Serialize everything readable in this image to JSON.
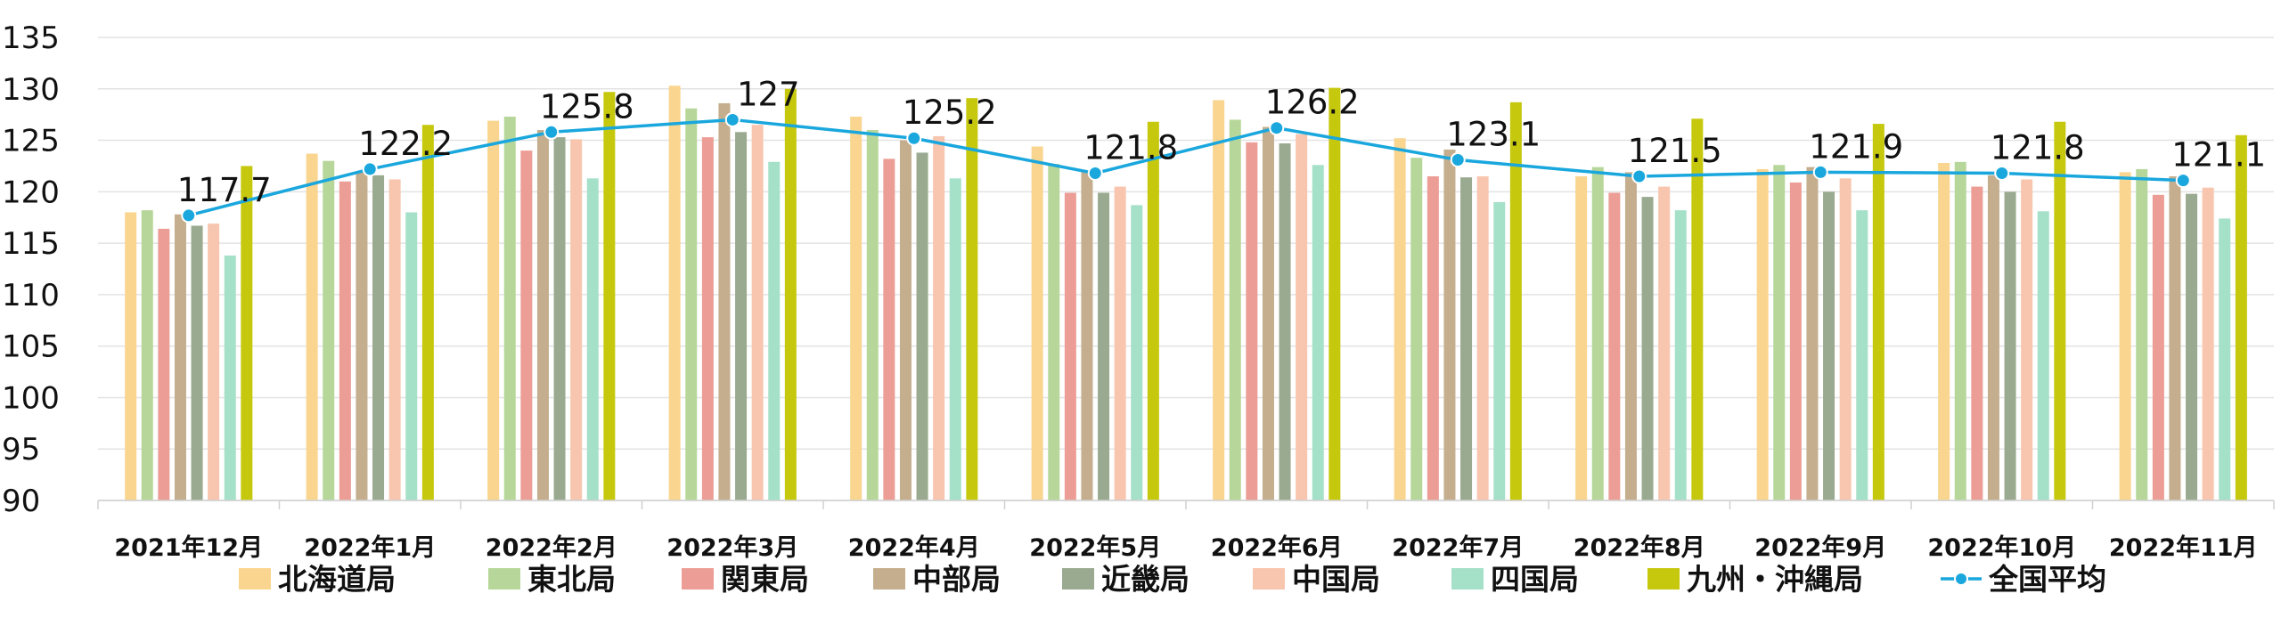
{
  "chart_data": {
    "type": "bar",
    "categories": [
      "2021年12月",
      "2022年1月",
      "2022年2月",
      "2022年3月",
      "2022年4月",
      "2022年5月",
      "2022年6月",
      "2022年7月",
      "2022年8月",
      "2022年9月",
      "2022年10月",
      "2022年11月"
    ],
    "y_ticks": [
      "90",
      "95",
      "100",
      "105",
      "110",
      "115",
      "120",
      "125",
      "130",
      "135"
    ],
    "ylim": [
      90,
      135
    ],
    "grid": true,
    "legend_position": "bottom",
    "series": [
      {
        "name": "北海道局",
        "color": "#FAD58F",
        "values": [
          118.0,
          123.7,
          126.9,
          130.3,
          127.3,
          124.4,
          128.9,
          125.2,
          121.5,
          122.2,
          122.8,
          121.9
        ]
      },
      {
        "name": "東北局",
        "color": "#B7D79A",
        "values": [
          118.2,
          123.0,
          127.3,
          128.1,
          126.0,
          122.7,
          127.0,
          123.3,
          122.4,
          122.6,
          122.9,
          122.2
        ]
      },
      {
        "name": "関東局",
        "color": "#EC9D95",
        "values": [
          116.4,
          121.0,
          124.0,
          125.3,
          123.2,
          119.9,
          124.8,
          121.5,
          119.9,
          120.9,
          120.5,
          119.7
        ]
      },
      {
        "name": "中部局",
        "color": "#C4AE8E",
        "values": [
          117.8,
          121.9,
          126.0,
          128.6,
          125.0,
          122.0,
          126.3,
          124.1,
          121.9,
          122.4,
          121.6,
          121.5
        ]
      },
      {
        "name": "近畿局",
        "color": "#9AAA90",
        "values": [
          116.7,
          121.6,
          125.3,
          125.8,
          123.8,
          119.9,
          124.7,
          121.4,
          119.5,
          120.0,
          120.0,
          119.8
        ]
      },
      {
        "name": "中国局",
        "color": "#F8C6AF",
        "values": [
          116.9,
          121.2,
          125.1,
          126.5,
          125.4,
          120.5,
          125.6,
          121.5,
          120.5,
          121.3,
          121.2,
          120.4
        ]
      },
      {
        "name": "四国局",
        "color": "#A5E0C8",
        "values": [
          113.8,
          118.0,
          121.3,
          122.9,
          121.3,
          118.7,
          122.6,
          119.0,
          118.2,
          118.2,
          118.1,
          117.4
        ]
      },
      {
        "name": "九州・沖縄局",
        "color": "#C6C80E",
        "values": [
          122.5,
          126.5,
          129.7,
          130.0,
          129.1,
          126.8,
          130.1,
          128.7,
          127.1,
          126.6,
          126.8,
          125.5
        ]
      }
    ],
    "line_series": {
      "name": "全国平均",
      "color": "#1AA7DD",
      "values": [
        117.7,
        122.2,
        125.8,
        127,
        125.2,
        121.8,
        126.2,
        123.1,
        121.5,
        121.9,
        121.8,
        121.1
      ],
      "labels": [
        "117.7",
        "122.2",
        "125.8",
        "127",
        "125.2",
        "121.8",
        "126.2",
        "123.1",
        "121.5",
        "121.9",
        "121.8",
        "121.1"
      ]
    }
  }
}
